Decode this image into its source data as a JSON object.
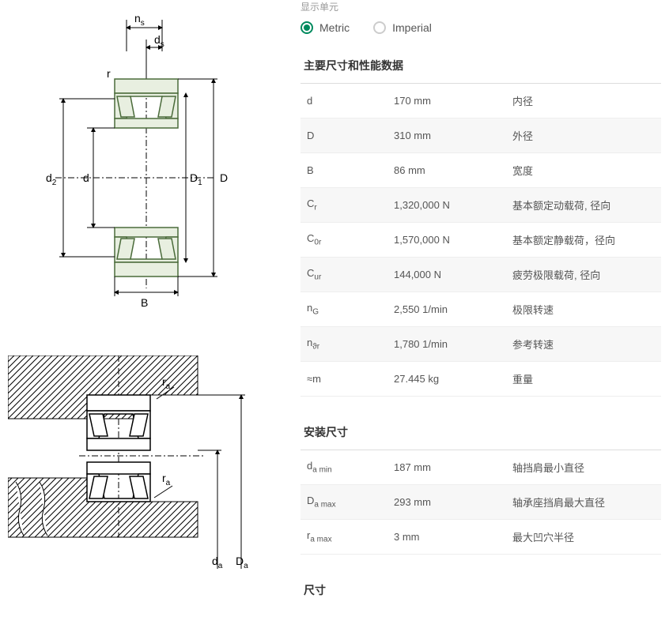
{
  "units": {
    "label": "显示单元",
    "metric": "Metric",
    "imperial": "Imperial",
    "selected": "metric"
  },
  "diagram1": {
    "labels": {
      "ns": "n",
      "ns_sub": "s",
      "ds": "d",
      "ds_sub": "s",
      "r1": "r",
      "r2": "r",
      "d2": "d",
      "d2_sub": "2",
      "d": "d",
      "D1": "D",
      "D1_sub": "1",
      "D": "D",
      "B": "B"
    },
    "colors": {
      "stroke": "#4a6b3a",
      "fill": "#e8efe0",
      "dim": "#000"
    }
  },
  "diagram2": {
    "labels": {
      "ra1": "r",
      "ra1_sub": "a",
      "ra2": "r",
      "ra2_sub": "a",
      "da": "d",
      "da_sub": "a",
      "Da": "D",
      "Da_sub": "a"
    },
    "colors": {
      "stroke": "#000",
      "hatch": "#000"
    }
  },
  "sections": {
    "main": {
      "title": "主要尺寸和性能数据",
      "rows": [
        {
          "sym": "d",
          "sub": "",
          "val": "170 mm",
          "desc": "内径"
        },
        {
          "sym": "D",
          "sub": "",
          "val": "310 mm",
          "desc": "外径"
        },
        {
          "sym": "B",
          "sub": "",
          "val": "86 mm",
          "desc": "宽度"
        },
        {
          "sym": "C",
          "sub": "r",
          "val": "1,320,000 N",
          "desc": "基本额定动载荷, 径向"
        },
        {
          "sym": "C",
          "sub": "0r",
          "val": "1,570,000 N",
          "desc": "基本额定静载荷，径向"
        },
        {
          "sym": "C",
          "sub": "ur",
          "val": "144,000 N",
          "desc": "疲劳极限载荷, 径向"
        },
        {
          "sym": "n",
          "sub": "G",
          "val": "2,550 1/min",
          "desc": "极限转速"
        },
        {
          "sym": "n",
          "sub": "ϑr",
          "val": "1,780 1/min",
          "desc": "参考转速"
        },
        {
          "sym": "≈m",
          "sub": "",
          "val": "27.445 kg",
          "desc": "重量"
        }
      ]
    },
    "mounting": {
      "title": "安装尺寸",
      "rows": [
        {
          "sym": "d",
          "sub": "a min",
          "val": "187 mm",
          "desc": "轴挡肩最小直径"
        },
        {
          "sym": "D",
          "sub": "a max",
          "val": "293 mm",
          "desc": "轴承座挡肩最大直径"
        },
        {
          "sym": "r",
          "sub": "a max",
          "val": "3 mm",
          "desc": "最大凹穴半径"
        }
      ]
    },
    "dims": {
      "title": "尺寸"
    }
  }
}
